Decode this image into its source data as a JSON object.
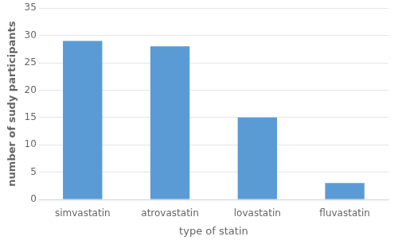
{
  "chart_data": {
    "type": "bar",
    "categories": [
      "simvastatin",
      "atrovastatin",
      "lovastatin",
      "fluvastatin"
    ],
    "values": [
      29,
      28,
      15,
      3
    ],
    "color": "#5b9bd5",
    "xlabel": "type of statin",
    "ylabel": "number of sudy participants",
    "ylim": [
      0,
      35
    ],
    "yticks": [
      0,
      5,
      10,
      15,
      20,
      25,
      30,
      35
    ],
    "grid": true
  }
}
